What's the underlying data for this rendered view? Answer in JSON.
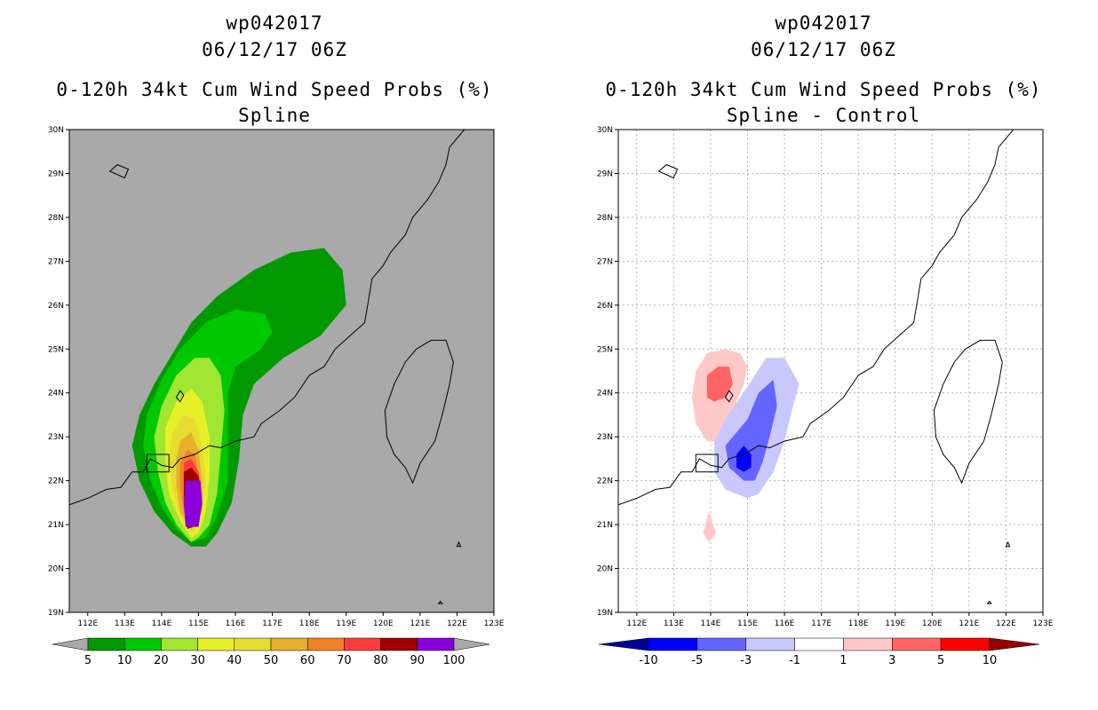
{
  "chart_data": [
    {
      "type": "heatmap",
      "title_line1": "wp042017",
      "title_line2": "06/12/17 06Z",
      "title_line3": "0-120h 34kt Cum Wind Speed Probs (%)",
      "title_line4": "Spline",
      "x_ticks": [
        "112E",
        "113E",
        "114E",
        "115E",
        "116E",
        "117E",
        "118E",
        "119E",
        "120E",
        "121E",
        "122E",
        "123E"
      ],
      "y_ticks": [
        "19N",
        "20N",
        "21N",
        "22N",
        "23N",
        "24N",
        "25N",
        "26N",
        "27N",
        "28N",
        "29N",
        "30N"
      ],
      "xlim": [
        111.5,
        123
      ],
      "ylim": [
        19,
        30
      ],
      "grid": false,
      "background_color": "#a9a9a9",
      "colorbar": {
        "labels": [
          "5",
          "10",
          "20",
          "30",
          "40",
          "50",
          "60",
          "70",
          "80",
          "90",
          "100"
        ],
        "colors": [
          "#019901",
          "#00c800",
          "#a0e632",
          "#e6f028",
          "#e6dc32",
          "#e6af2d",
          "#f08228",
          "#fa3c3c",
          "#a00000",
          "#8c00dc"
        ],
        "under_color": "#a9a9a9",
        "over_color": "#a9a9a9"
      },
      "contours": [
        {
          "level": 5,
          "color": "#019901",
          "polygon": [
            [
              114.8,
              20.5
            ],
            [
              114.3,
              20.8
            ],
            [
              113.8,
              21.3
            ],
            [
              113.4,
              22.0
            ],
            [
              113.2,
              22.8
            ],
            [
              113.4,
              23.5
            ],
            [
              113.8,
              24.2
            ],
            [
              114.3,
              24.9
            ],
            [
              114.8,
              25.6
            ],
            [
              115.5,
              26.2
            ],
            [
              116.5,
              26.8
            ],
            [
              117.5,
              27.2
            ],
            [
              118.4,
              27.3
            ],
            [
              118.9,
              26.8
            ],
            [
              119.0,
              26.0
            ],
            [
              118.3,
              25.3
            ],
            [
              117.3,
              24.8
            ],
            [
              116.5,
              24.2
            ],
            [
              116.2,
              23.5
            ],
            [
              116.1,
              22.5
            ],
            [
              115.9,
              21.5
            ],
            [
              115.5,
              20.8
            ],
            [
              115.2,
              20.5
            ]
          ]
        },
        {
          "level": 10,
          "color": "#00c800",
          "polygon": [
            [
              114.8,
              20.6
            ],
            [
              114.4,
              20.9
            ],
            [
              114.0,
              21.4
            ],
            [
              113.7,
              22.0
            ],
            [
              113.5,
              22.8
            ],
            [
              113.6,
              23.5
            ],
            [
              114.0,
              24.3
            ],
            [
              114.5,
              25.0
            ],
            [
              115.2,
              25.6
            ],
            [
              116.0,
              25.9
            ],
            [
              116.8,
              25.8
            ],
            [
              117.0,
              25.4
            ],
            [
              116.7,
              25.0
            ],
            [
              116.0,
              24.6
            ],
            [
              115.8,
              24.0
            ],
            [
              115.8,
              23.0
            ],
            [
              115.8,
              22.0
            ],
            [
              115.5,
              21.2
            ],
            [
              115.2,
              20.7
            ]
          ]
        },
        {
          "level": 20,
          "color": "#a0e632",
          "polygon": [
            [
              114.8,
              20.6
            ],
            [
              114.4,
              21.0
            ],
            [
              114.1,
              21.5
            ],
            [
              113.9,
              22.2
            ],
            [
              113.8,
              23.0
            ],
            [
              114.0,
              23.7
            ],
            [
              114.4,
              24.4
            ],
            [
              114.9,
              24.8
            ],
            [
              115.3,
              24.8
            ],
            [
              115.6,
              24.4
            ],
            [
              115.7,
              23.6
            ],
            [
              115.6,
              22.6
            ],
            [
              115.5,
              21.7
            ],
            [
              115.3,
              21.0
            ],
            [
              115.0,
              20.7
            ]
          ]
        },
        {
          "level": 30,
          "color": "#e6f028",
          "polygon": [
            [
              114.8,
              20.7
            ],
            [
              114.5,
              21.1
            ],
            [
              114.2,
              21.7
            ],
            [
              114.1,
              22.4
            ],
            [
              114.1,
              23.2
            ],
            [
              114.4,
              23.8
            ],
            [
              114.8,
              24.1
            ],
            [
              115.1,
              23.8
            ],
            [
              115.3,
              23.0
            ],
            [
              115.3,
              22.1
            ],
            [
              115.2,
              21.3
            ],
            [
              115.0,
              20.8
            ]
          ]
        },
        {
          "level": 40,
          "color": "#e6dc32",
          "polygon": [
            [
              114.8,
              20.8
            ],
            [
              114.5,
              21.2
            ],
            [
              114.3,
              21.8
            ],
            [
              114.2,
              22.5
            ],
            [
              114.3,
              23.1
            ],
            [
              114.6,
              23.5
            ],
            [
              114.9,
              23.4
            ],
            [
              115.1,
              22.8
            ],
            [
              115.2,
              22.0
            ],
            [
              115.1,
              21.3
            ],
            [
              114.9,
              20.9
            ]
          ]
        },
        {
          "level": 50,
          "color": "#e6af2d",
          "polygon": [
            [
              114.8,
              20.9
            ],
            [
              114.5,
              21.3
            ],
            [
              114.4,
              21.9
            ],
            [
              114.4,
              22.5
            ],
            [
              114.5,
              22.9
            ],
            [
              114.8,
              23.1
            ],
            [
              115.0,
              22.7
            ],
            [
              115.1,
              22.0
            ],
            [
              115.1,
              21.3
            ],
            [
              114.9,
              21.0
            ]
          ]
        },
        {
          "level": 60,
          "color": "#f08228",
          "polygon": [
            [
              114.8,
              20.9
            ],
            [
              114.6,
              21.3
            ],
            [
              114.5,
              21.9
            ],
            [
              114.5,
              22.4
            ],
            [
              114.7,
              22.7
            ],
            [
              114.9,
              22.6
            ],
            [
              115.0,
              22.1
            ],
            [
              115.1,
              21.5
            ],
            [
              114.9,
              21.0
            ]
          ]
        },
        {
          "level": 70,
          "color": "#fa3c3c",
          "polygon": [
            [
              114.7,
              20.9
            ],
            [
              114.6,
              21.4
            ],
            [
              114.6,
              22.0
            ],
            [
              114.6,
              22.4
            ],
            [
              114.8,
              22.5
            ],
            [
              115.0,
              22.2
            ],
            [
              115.1,
              21.6
            ],
            [
              115.0,
              21.0
            ]
          ]
        },
        {
          "level": 80,
          "color": "#a00000",
          "polygon": [
            [
              114.7,
              20.9
            ],
            [
              114.6,
              21.5
            ],
            [
              114.6,
              22.2
            ],
            [
              114.8,
              22.3
            ],
            [
              115.0,
              22.1
            ],
            [
              115.1,
              21.5
            ],
            [
              115.0,
              21.0
            ]
          ]
        },
        {
          "level": 90,
          "color": "#8c00dc",
          "polygon": [
            [
              114.65,
              20.95
            ],
            [
              114.6,
              21.5
            ],
            [
              114.65,
              22.0
            ],
            [
              115.05,
              22.0
            ],
            [
              115.1,
              21.5
            ],
            [
              115.0,
              20.95
            ]
          ]
        }
      ]
    },
    {
      "type": "heatmap",
      "title_line1": "wp042017",
      "title_line2": "06/12/17 06Z",
      "title_line3": "0-120h 34kt Cum Wind Speed Probs (%)",
      "title_line4": "Spline - Control",
      "x_ticks": [
        "112E",
        "113E",
        "114E",
        "115E",
        "116E",
        "117E",
        "118E",
        "119E",
        "120E",
        "121E",
        "122E",
        "123E"
      ],
      "y_ticks": [
        "19N",
        "20N",
        "21N",
        "22N",
        "23N",
        "24N",
        "25N",
        "26N",
        "27N",
        "28N",
        "29N",
        "30N"
      ],
      "xlim": [
        111.5,
        123
      ],
      "ylim": [
        19,
        30
      ],
      "grid": true,
      "background_color": "#ffffff",
      "colorbar": {
        "labels": [
          "-10",
          "-5",
          "-3",
          "-1",
          "1",
          "3",
          "5",
          "10"
        ],
        "colors": [
          "#0000ff",
          "#6464ff",
          "#c8c8ff",
          "#ffffff",
          "#ffc8c8",
          "#ff6464",
          "#ff0000"
        ],
        "under_color": "#000096",
        "over_color": "#960000"
      },
      "contours": [
        {
          "level": 1,
          "color": "#ffc8c8",
          "polygon": [
            [
              113.9,
              22.9
            ],
            [
              113.6,
              23.3
            ],
            [
              113.5,
              23.9
            ],
            [
              113.6,
              24.5
            ],
            [
              113.9,
              24.9
            ],
            [
              114.4,
              25.0
            ],
            [
              114.8,
              24.9
            ],
            [
              115.0,
              24.6
            ],
            [
              114.9,
              24.2
            ],
            [
              114.7,
              23.8
            ],
            [
              114.6,
              23.3
            ],
            [
              114.4,
              22.9
            ]
          ]
        },
        {
          "level": 3,
          "color": "#ff6464",
          "polygon": [
            [
              113.9,
              23.9
            ],
            [
              113.9,
              24.4
            ],
            [
              114.2,
              24.6
            ],
            [
              114.5,
              24.6
            ],
            [
              114.6,
              24.2
            ],
            [
              114.4,
              23.9
            ],
            [
              114.1,
              23.8
            ]
          ]
        },
        {
          "level": 1,
          "color": "#ffc8c8",
          "polygon": [
            [
              113.8,
              20.8
            ],
            [
              113.95,
              21.3
            ],
            [
              114.15,
              20.8
            ],
            [
              113.95,
              20.6
            ]
          ]
        },
        {
          "level": -1,
          "color": "#c8c8ff",
          "polygon": [
            [
              115.0,
              21.6
            ],
            [
              114.4,
              21.8
            ],
            [
              114.1,
              22.2
            ],
            [
              114.1,
              22.9
            ],
            [
              114.4,
              23.4
            ],
            [
              114.8,
              23.9
            ],
            [
              115.2,
              24.4
            ],
            [
              115.5,
              24.8
            ],
            [
              116.0,
              24.8
            ],
            [
              116.4,
              24.2
            ],
            [
              116.2,
              23.6
            ],
            [
              116.0,
              22.9
            ],
            [
              115.7,
              22.2
            ],
            [
              115.3,
              21.7
            ]
          ]
        },
        {
          "level": -3,
          "color": "#6464ff",
          "polygon": [
            [
              114.9,
              22.0
            ],
            [
              114.5,
              22.3
            ],
            [
              114.4,
              22.8
            ],
            [
              114.7,
              23.1
            ],
            [
              115.0,
              23.4
            ],
            [
              115.3,
              24.0
            ],
            [
              115.7,
              24.3
            ],
            [
              115.8,
              23.7
            ],
            [
              115.6,
              23.0
            ],
            [
              115.4,
              22.4
            ],
            [
              115.2,
              22.0
            ]
          ]
        },
        {
          "level": -5,
          "color": "#0000ff",
          "polygon": [
            [
              114.7,
              22.3
            ],
            [
              114.7,
              22.6
            ],
            [
              114.9,
              22.8
            ],
            [
              115.1,
              22.6
            ],
            [
              115.1,
              22.3
            ],
            [
              114.9,
              22.2
            ]
          ]
        }
      ]
    }
  ]
}
